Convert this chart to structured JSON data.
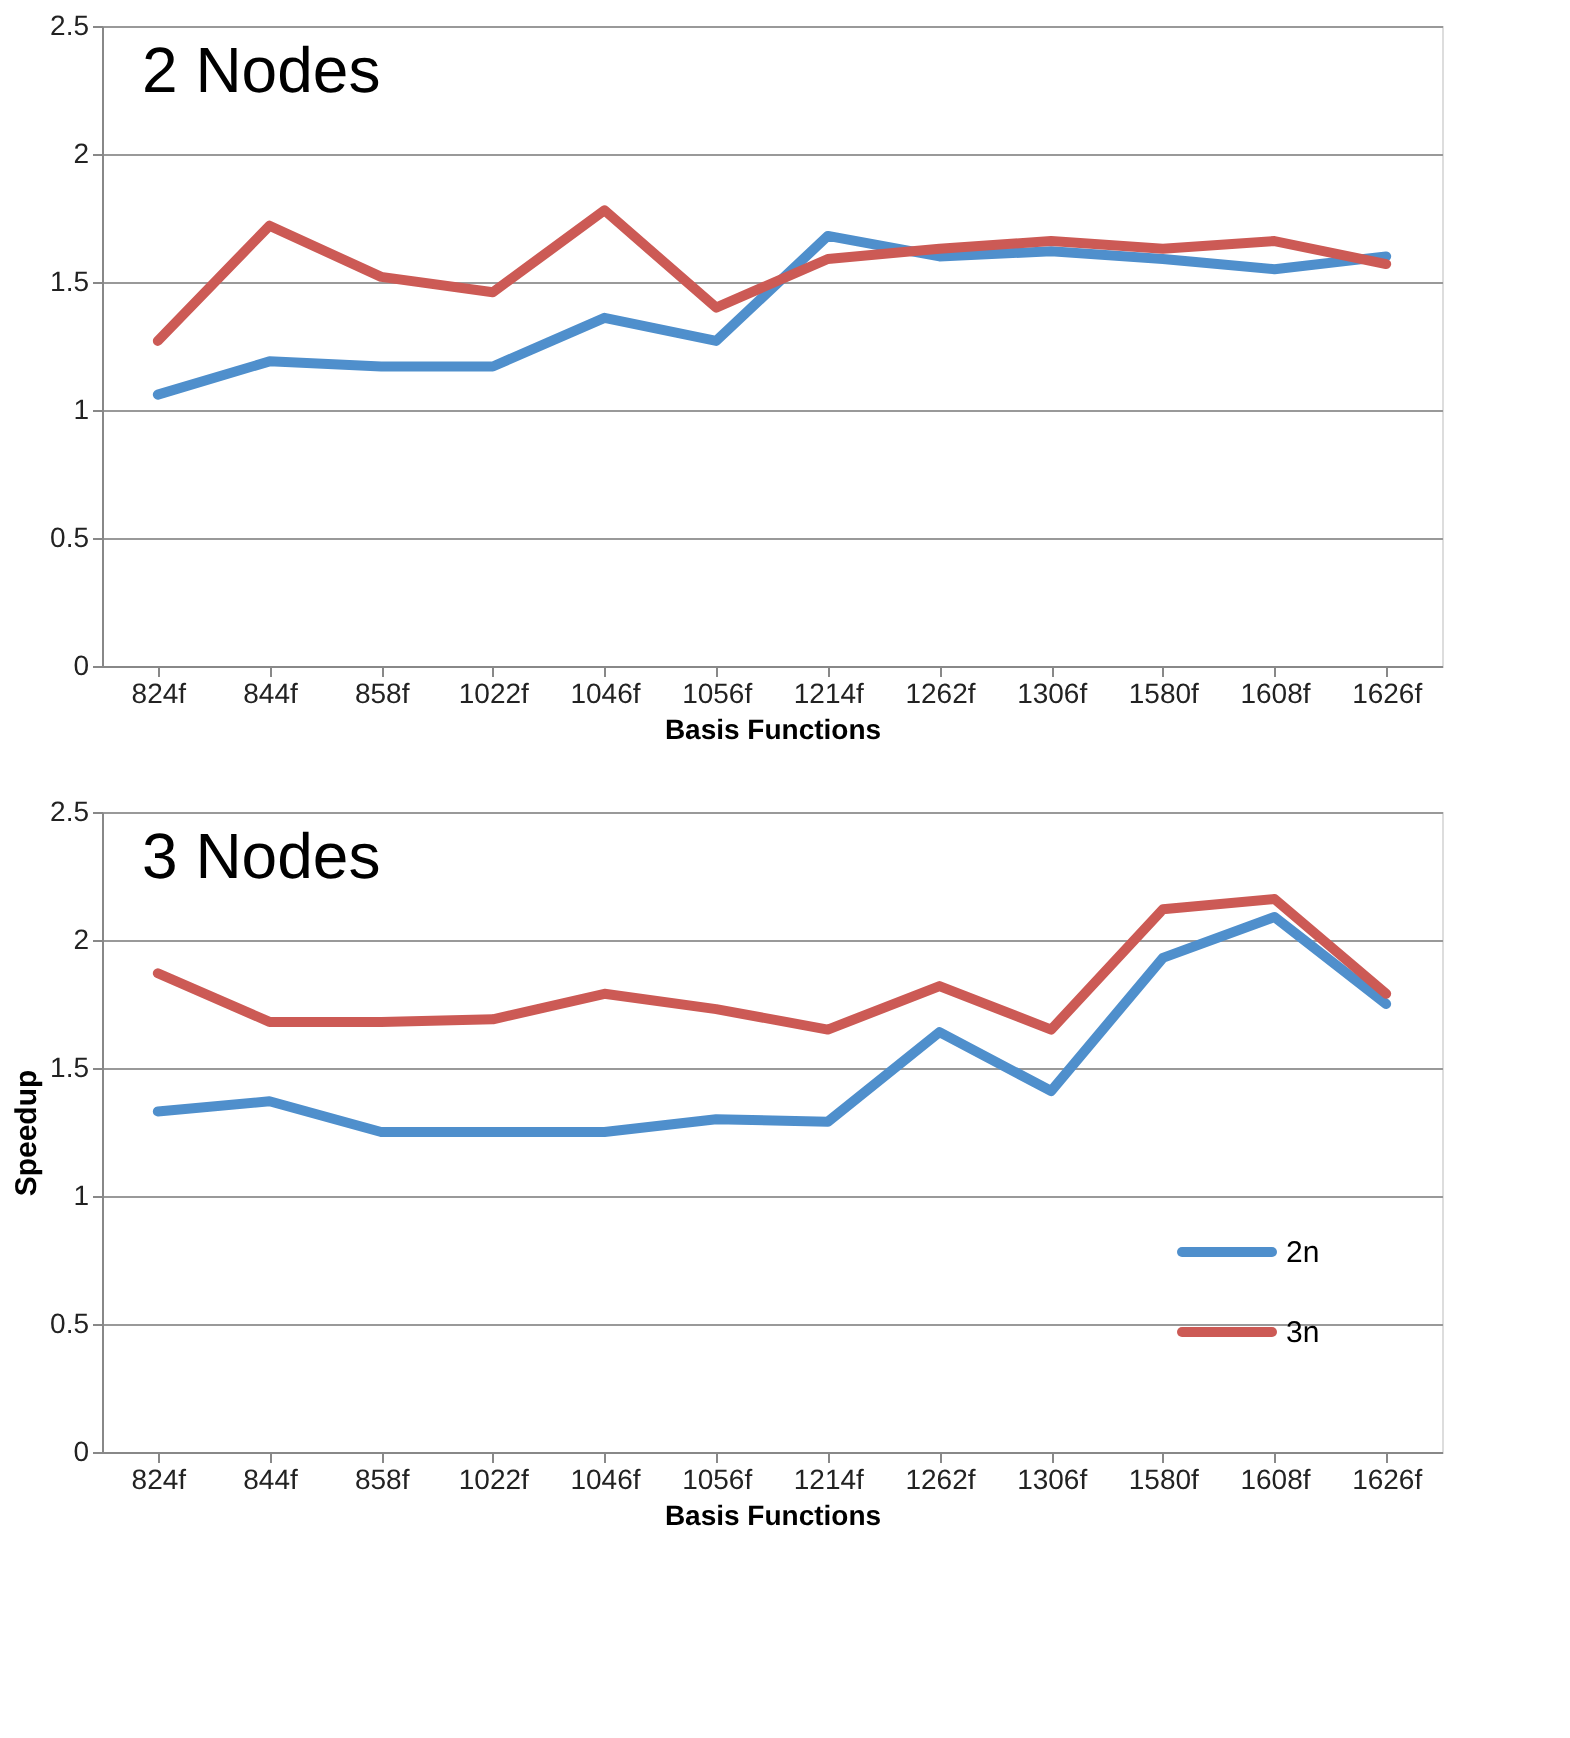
{
  "chart_data": [
    {
      "type": "line",
      "title": "2 Nodes",
      "xlabel": "Basis Functions",
      "categories": [
        "824f",
        "844f",
        "858f",
        "1022f",
        "1046f",
        "1056f",
        "1214f",
        "1262f",
        "1306f",
        "1580f",
        "1608f",
        "1626f"
      ],
      "series": [
        {
          "color": "#4f8fcc",
          "values": [
            1.06,
            1.19,
            1.17,
            1.17,
            1.36,
            1.27,
            1.68,
            1.6,
            1.62,
            1.59,
            1.55,
            1.6
          ]
        },
        {
          "color": "#cc5a55",
          "values": [
            1.27,
            1.72,
            1.52,
            1.46,
            1.78,
            1.4,
            1.59,
            1.63,
            1.66,
            1.63,
            1.66,
            1.57
          ]
        }
      ],
      "ylim": [
        0,
        2.5
      ],
      "yticks": [
        0,
        0.5,
        1,
        1.5,
        2,
        2.5
      ],
      "grid": "y",
      "line_style": "solid",
      "marker": "none"
    },
    {
      "type": "line",
      "title": "3 Nodes",
      "xlabel": "Basis Functions",
      "ylabel": "Speedup",
      "categories": [
        "824f",
        "844f",
        "858f",
        "1022f",
        "1046f",
        "1056f",
        "1214f",
        "1262f",
        "1306f",
        "1580f",
        "1608f",
        "1626f"
      ],
      "series": [
        {
          "name": "2n",
          "color": "#4f8fcc",
          "values": [
            1.33,
            1.37,
            1.25,
            1.25,
            1.25,
            1.3,
            1.29,
            1.64,
            1.41,
            1.93,
            2.09,
            1.75
          ]
        },
        {
          "name": "3n",
          "color": "#cc5a55",
          "values": [
            1.87,
            1.68,
            1.68,
            1.69,
            1.79,
            1.73,
            1.65,
            1.82,
            1.65,
            2.12,
            2.16,
            1.79
          ]
        }
      ],
      "ylim": [
        0,
        2.5
      ],
      "yticks": [
        0,
        0.5,
        1,
        1.5,
        2,
        2.5
      ],
      "grid": "y",
      "legend": "bottom right",
      "line_style": "solid",
      "marker": "none"
    }
  ]
}
